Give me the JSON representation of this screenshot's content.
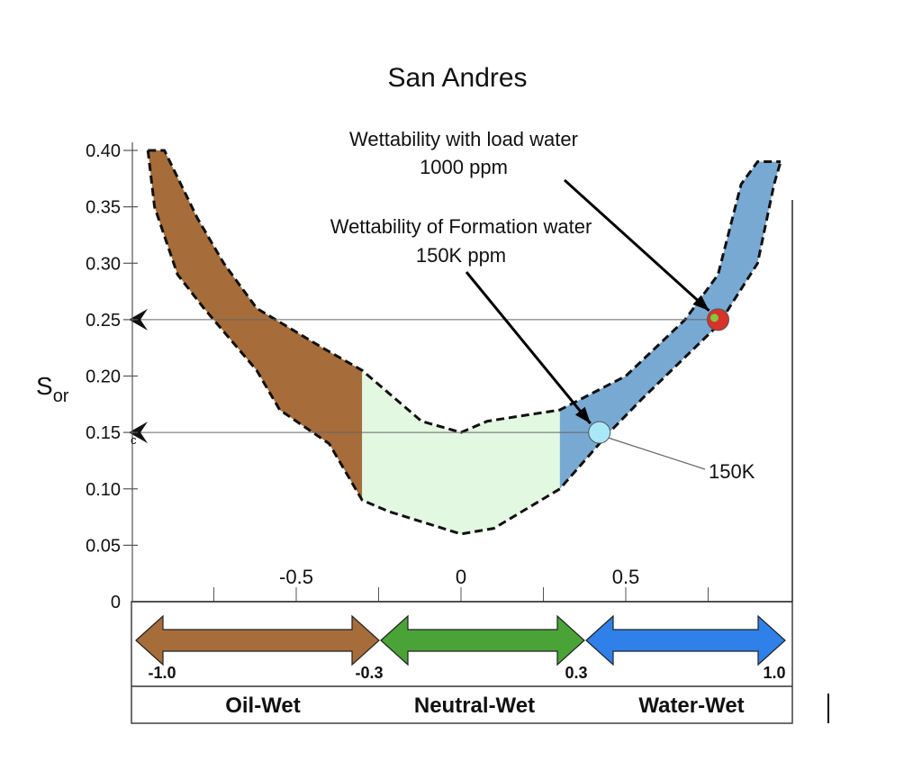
{
  "chart_data": {
    "type": "area",
    "title": "San Andres",
    "ylabel_main": "S",
    "ylabel_sub": "or",
    "ylim": [
      0,
      0.4
    ],
    "xlim": [
      -1.0,
      1.0
    ],
    "y_ticks": [
      {
        "value": 0.4,
        "label": "0.40"
      },
      {
        "value": 0.35,
        "label": "0.35"
      },
      {
        "value": 0.3,
        "label": "0.30"
      },
      {
        "value": 0.25,
        "label": "0.25"
      },
      {
        "value": 0.2,
        "label": "0.20"
      },
      {
        "value": 0.15,
        "label": "0.15"
      },
      {
        "value": 0.1,
        "label": "0.10"
      },
      {
        "value": 0.05,
        "label": "0.05"
      },
      {
        "value": 0.0,
        "label": "0"
      }
    ],
    "x_ticks": [
      {
        "value": -0.5,
        "label": "-0.5"
      },
      {
        "value": 0,
        "label": "0"
      },
      {
        "value": 0.5,
        "label": "0.5"
      }
    ],
    "upper_boundary": [
      [
        -0.95,
        0.4
      ],
      [
        -0.9,
        0.4
      ],
      [
        -0.8,
        0.34
      ],
      [
        -0.72,
        0.3
      ],
      [
        -0.62,
        0.26
      ],
      [
        -0.42,
        0.225
      ],
      [
        -0.3,
        0.205
      ],
      [
        -0.22,
        0.185
      ],
      [
        -0.12,
        0.16
      ],
      [
        0.0,
        0.15
      ],
      [
        0.08,
        0.16
      ],
      [
        0.3,
        0.17
      ],
      [
        0.5,
        0.2
      ],
      [
        0.68,
        0.25
      ],
      [
        0.78,
        0.29
      ],
      [
        0.85,
        0.37
      ],
      [
        0.9,
        0.39
      ],
      [
        0.97,
        0.39
      ]
    ],
    "lower_boundary": [
      [
        -0.95,
        0.4
      ],
      [
        -0.93,
        0.35
      ],
      [
        -0.86,
        0.29
      ],
      [
        -0.78,
        0.26
      ],
      [
        -0.62,
        0.205
      ],
      [
        -0.55,
        0.17
      ],
      [
        -0.4,
        0.14
      ],
      [
        -0.3,
        0.09
      ],
      [
        -0.22,
        0.08
      ],
      [
        0.0,
        0.06
      ],
      [
        0.1,
        0.065
      ],
      [
        0.3,
        0.1
      ],
      [
        0.45,
        0.15
      ],
      [
        0.55,
        0.18
      ],
      [
        0.78,
        0.245
      ],
      [
        0.9,
        0.3
      ],
      [
        0.95,
        0.37
      ],
      [
        0.97,
        0.39
      ]
    ],
    "regions": [
      {
        "name": "Oil-Wet",
        "from": -1.0,
        "to": -0.3,
        "color": "#a66d3a"
      },
      {
        "name": "Neutral-Wet",
        "from": -0.3,
        "to": 0.3,
        "color": "#e2f8e0"
      },
      {
        "name": "Water-Wet",
        "from": 0.3,
        "to": 1.0,
        "color": "#78a9d2"
      }
    ],
    "points": [
      {
        "label": "1000 ppm",
        "x": 0.78,
        "y": 0.25,
        "color": "#d8322a",
        "inner": "#7ecb3f"
      },
      {
        "label": "150K",
        "x": 0.42,
        "y": 0.15,
        "color": "#a8e8f8"
      }
    ],
    "reference_lines": [
      0.25,
      0.15
    ],
    "annotations": [
      {
        "line1": "Wettability with load water",
        "line2": "1000 ppm"
      },
      {
        "line1": "Wettability of Formation water",
        "line2": "150K ppm"
      },
      {
        "line1": "150K"
      }
    ],
    "small_marker": "c"
  },
  "scale_bar": {
    "arrows": [
      {
        "from_label": "-1.0",
        "to_label": "-0.3",
        "color": "#a66d3a"
      },
      {
        "from_label": "",
        "to_label": "0.3",
        "color": "#4aa337"
      },
      {
        "from_label": "",
        "to_label": "1.0",
        "color": "#2f80e8"
      }
    ],
    "categories": [
      "Oil-Wet",
      "Neutral-Wet",
      "Water-Wet"
    ]
  }
}
